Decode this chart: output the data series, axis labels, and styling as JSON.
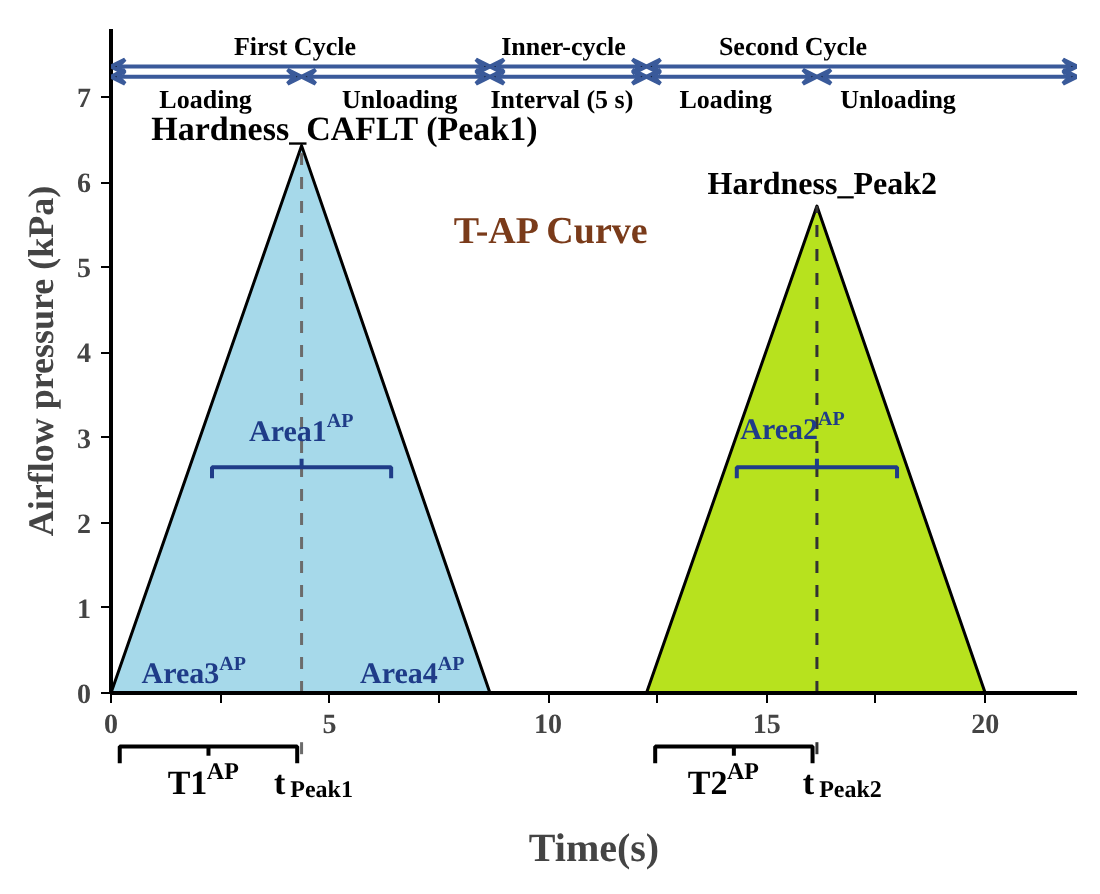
{
  "chart_data": {
    "type": "area",
    "xlabel": "Time(s)",
    "ylabel": "Airflow pressure (kPa)",
    "series": [
      {
        "x": [
          0,
          4.36,
          8.67
        ],
        "values": [
          0,
          6.43,
          0
        ],
        "color": "#a6d9ea"
      },
      {
        "x": [
          12.25,
          16.15,
          20
        ],
        "values": [
          0,
          5.72,
          0
        ],
        "color": "#b7e21e"
      }
    ],
    "xlim": [
      0,
      22.1
    ],
    "ylim": [
      0,
      7.8
    ],
    "xticks": [
      0,
      {
        "value": 2.5,
        "label": null
      },
      5,
      {
        "value": 7.5,
        "label": null
      },
      10,
      {
        "value": 12.5,
        "label": null
      },
      15,
      {
        "value": 17.5,
        "label": null
      },
      20
    ],
    "yticks": [
      0,
      1,
      2,
      3,
      4,
      5,
      6,
      7
    ],
    "grid": false,
    "ref_lines": [
      {
        "axis": "x",
        "value": 4.36,
        "color": "#6b6b6b",
        "line_style": "dashed"
      },
      {
        "axis": "x",
        "value": 16.15,
        "color": "#333333",
        "line_style": "dashed"
      }
    ],
    "annotations": [
      "First Cycle",
      "Inner-cycle",
      "Second Cycle",
      "Loading",
      "Unloading",
      "Interval (5 s)",
      "Loading",
      "Unloading",
      "Hardness_CAFLT (Peak1)",
      "Hardness_Peak2",
      "T-AP Curve",
      "Area1$^{AP}$",
      "Area2$^{AP}$",
      "Area3$^{AP}$",
      "Area4$^{AP}$",
      "T1$^{AP}$",
      "T2$^{AP}$",
      "t$_{Peak1}$",
      "t$_{Peak2}$"
    ]
  }
}
